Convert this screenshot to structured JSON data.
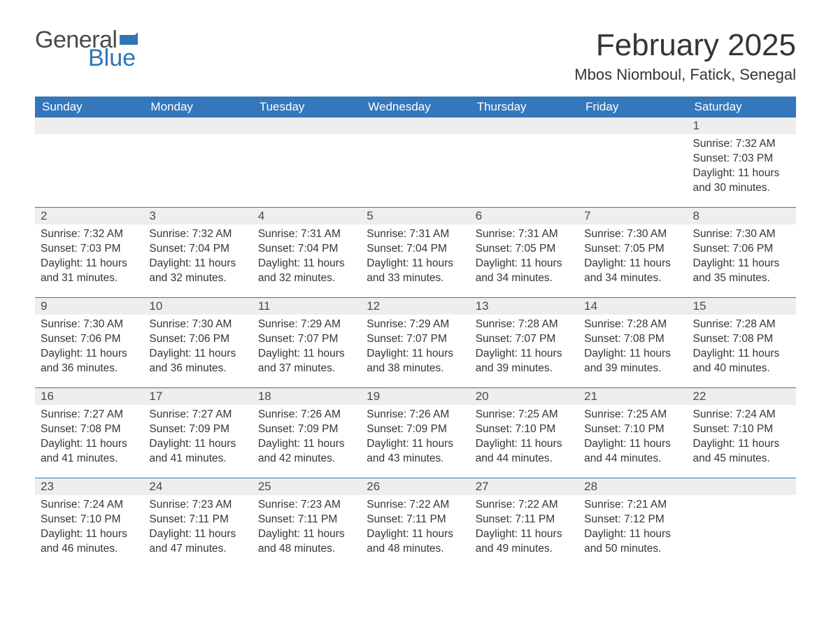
{
  "logo": {
    "general": "General",
    "blue": "Blue",
    "flag_color": "#2f75b5"
  },
  "header": {
    "title": "February 2025",
    "location": "Mbos Niomboul, Fatick, Senegal"
  },
  "colors": {
    "header_bg": "#3477bb",
    "header_text": "#ffffff",
    "daynum_bg": "#eeeeee",
    "rule": "#3477bb",
    "body_text": "#353535",
    "logo_gray": "#4a4a4a",
    "logo_blue": "#2f75b5",
    "page_bg": "#ffffff"
  },
  "typography": {
    "title_fontsize_pt": 33,
    "location_fontsize_pt": 17,
    "dayheader_fontsize_pt": 13,
    "body_fontsize_pt": 12,
    "font_family": "Segoe UI"
  },
  "day_labels": [
    "Sunday",
    "Monday",
    "Tuesday",
    "Wednesday",
    "Thursday",
    "Friday",
    "Saturday"
  ],
  "field_labels": {
    "sunrise": "Sunrise:",
    "sunset": "Sunset:",
    "daylight": "Daylight:"
  },
  "weeks": [
    [
      null,
      null,
      null,
      null,
      null,
      null,
      {
        "n": "1",
        "sunrise": "7:32 AM",
        "sunset": "7:03 PM",
        "daylight": "11 hours and 30 minutes."
      }
    ],
    [
      {
        "n": "2",
        "sunrise": "7:32 AM",
        "sunset": "7:03 PM",
        "daylight": "11 hours and 31 minutes."
      },
      {
        "n": "3",
        "sunrise": "7:32 AM",
        "sunset": "7:04 PM",
        "daylight": "11 hours and 32 minutes."
      },
      {
        "n": "4",
        "sunrise": "7:31 AM",
        "sunset": "7:04 PM",
        "daylight": "11 hours and 32 minutes."
      },
      {
        "n": "5",
        "sunrise": "7:31 AM",
        "sunset": "7:04 PM",
        "daylight": "11 hours and 33 minutes."
      },
      {
        "n": "6",
        "sunrise": "7:31 AM",
        "sunset": "7:05 PM",
        "daylight": "11 hours and 34 minutes."
      },
      {
        "n": "7",
        "sunrise": "7:30 AM",
        "sunset": "7:05 PM",
        "daylight": "11 hours and 34 minutes."
      },
      {
        "n": "8",
        "sunrise": "7:30 AM",
        "sunset": "7:06 PM",
        "daylight": "11 hours and 35 minutes."
      }
    ],
    [
      {
        "n": "9",
        "sunrise": "7:30 AM",
        "sunset": "7:06 PM",
        "daylight": "11 hours and 36 minutes."
      },
      {
        "n": "10",
        "sunrise": "7:30 AM",
        "sunset": "7:06 PM",
        "daylight": "11 hours and 36 minutes."
      },
      {
        "n": "11",
        "sunrise": "7:29 AM",
        "sunset": "7:07 PM",
        "daylight": "11 hours and 37 minutes."
      },
      {
        "n": "12",
        "sunrise": "7:29 AM",
        "sunset": "7:07 PM",
        "daylight": "11 hours and 38 minutes."
      },
      {
        "n": "13",
        "sunrise": "7:28 AM",
        "sunset": "7:07 PM",
        "daylight": "11 hours and 39 minutes."
      },
      {
        "n": "14",
        "sunrise": "7:28 AM",
        "sunset": "7:08 PM",
        "daylight": "11 hours and 39 minutes."
      },
      {
        "n": "15",
        "sunrise": "7:28 AM",
        "sunset": "7:08 PM",
        "daylight": "11 hours and 40 minutes."
      }
    ],
    [
      {
        "n": "16",
        "sunrise": "7:27 AM",
        "sunset": "7:08 PM",
        "daylight": "11 hours and 41 minutes."
      },
      {
        "n": "17",
        "sunrise": "7:27 AM",
        "sunset": "7:09 PM",
        "daylight": "11 hours and 41 minutes."
      },
      {
        "n": "18",
        "sunrise": "7:26 AM",
        "sunset": "7:09 PM",
        "daylight": "11 hours and 42 minutes."
      },
      {
        "n": "19",
        "sunrise": "7:26 AM",
        "sunset": "7:09 PM",
        "daylight": "11 hours and 43 minutes."
      },
      {
        "n": "20",
        "sunrise": "7:25 AM",
        "sunset": "7:10 PM",
        "daylight": "11 hours and 44 minutes."
      },
      {
        "n": "21",
        "sunrise": "7:25 AM",
        "sunset": "7:10 PM",
        "daylight": "11 hours and 44 minutes."
      },
      {
        "n": "22",
        "sunrise": "7:24 AM",
        "sunset": "7:10 PM",
        "daylight": "11 hours and 45 minutes."
      }
    ],
    [
      {
        "n": "23",
        "sunrise": "7:24 AM",
        "sunset": "7:10 PM",
        "daylight": "11 hours and 46 minutes."
      },
      {
        "n": "24",
        "sunrise": "7:23 AM",
        "sunset": "7:11 PM",
        "daylight": "11 hours and 47 minutes."
      },
      {
        "n": "25",
        "sunrise": "7:23 AM",
        "sunset": "7:11 PM",
        "daylight": "11 hours and 48 minutes."
      },
      {
        "n": "26",
        "sunrise": "7:22 AM",
        "sunset": "7:11 PM",
        "daylight": "11 hours and 48 minutes."
      },
      {
        "n": "27",
        "sunrise": "7:22 AM",
        "sunset": "7:11 PM",
        "daylight": "11 hours and 49 minutes."
      },
      {
        "n": "28",
        "sunrise": "7:21 AM",
        "sunset": "7:12 PM",
        "daylight": "11 hours and 50 minutes."
      },
      null
    ]
  ]
}
